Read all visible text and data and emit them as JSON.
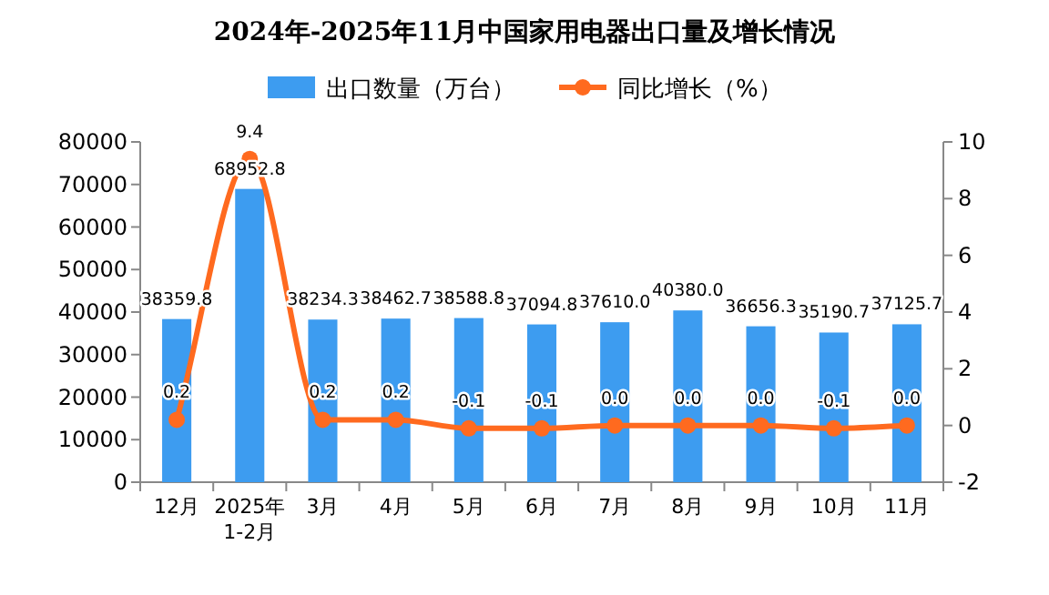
{
  "chart_data": {
    "type": "bar",
    "title": "2024年-2025年11月中国家用电器出口量及增长情况",
    "categories": [
      "12月",
      "2025年\n1-2月",
      "3月",
      "4月",
      "5月",
      "6月",
      "7月",
      "8月",
      "9月",
      "10月",
      "11月"
    ],
    "series": [
      {
        "name": "出口数量（万台）",
        "color": "#3d9cf0",
        "values": [
          38359.8,
          68952.8,
          38234.3,
          38462.7,
          38588.8,
          37094.8,
          37610.0,
          40380.0,
          36656.3,
          35190.7,
          37125.7
        ],
        "value_labels": [
          "38359.8",
          "68952.8",
          "38234.3",
          "38462.7",
          "38588.8",
          "37094.8",
          "37610.0",
          "40380.0",
          "36656.3",
          "35190.7",
          "37125.7"
        ]
      },
      {
        "name": "同比增长（%）",
        "type": "line",
        "axis": "y2",
        "color": "#ff6a1f",
        "marker": "circle",
        "values": [
          0.2,
          9.4,
          0.2,
          0.2,
          -0.1,
          -0.1,
          0.0,
          0.0,
          0.0,
          -0.1,
          0.0
        ],
        "value_labels": [
          "0.2",
          "9.4",
          "0.2",
          "0.2",
          "-0.1",
          "-0.1",
          "0.0",
          "0.0",
          "0.0",
          "-0.1",
          "0.0"
        ]
      }
    ],
    "ylim": [
      0,
      80000
    ],
    "yticks": [
      0,
      10000,
      20000,
      30000,
      40000,
      50000,
      60000,
      70000,
      80000
    ],
    "y2lim": [
      -2,
      10
    ],
    "y2ticks": [
      -2,
      0,
      2,
      4,
      6,
      8,
      10
    ],
    "legend": "top",
    "grid": false
  }
}
